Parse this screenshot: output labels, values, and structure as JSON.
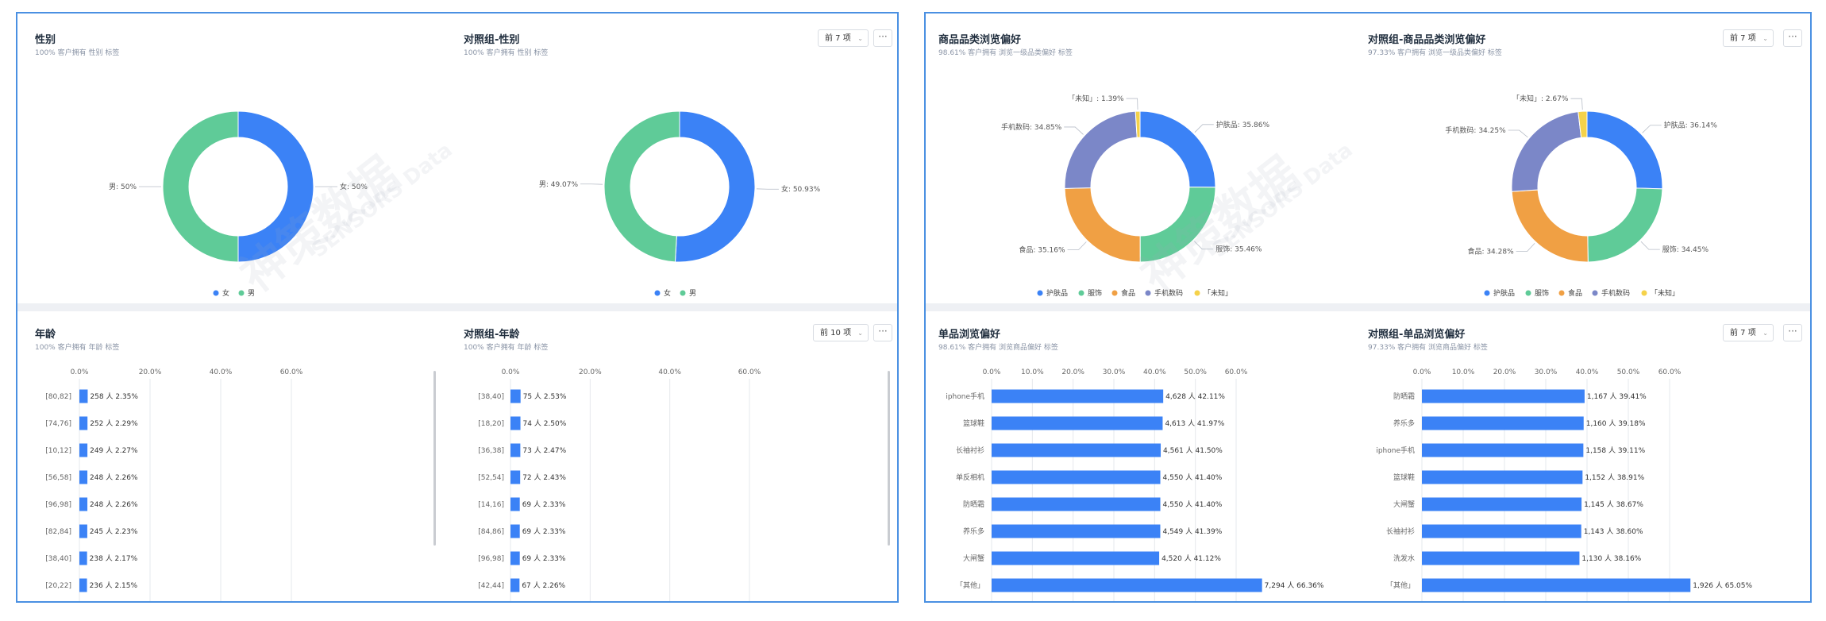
{
  "colors": {
    "blue": "#3b82f6",
    "green": "#5fcb98",
    "orange": "#f0a044",
    "purple": "#7b87c8",
    "yellow": "#f5d24a",
    "accent": "#4a90e2"
  },
  "watermark": {
    "main": "神策数据",
    "sub": "SENSORS Data"
  },
  "left": {
    "gender": {
      "title": "性别",
      "subtitle": "100% 客户拥有 性别 标签",
      "chart_data": {
        "type": "pie",
        "title": "性别",
        "slices": [
          {
            "name": "女",
            "value": 50,
            "label": "女: 50%",
            "color": "#3b82f6"
          },
          {
            "name": "男",
            "value": 50,
            "label": "男: 50%",
            "color": "#5fcb98"
          }
        ],
        "legend": [
          "女",
          "男"
        ],
        "legend_position": "bottom"
      }
    },
    "ctrl_gender": {
      "title": "对照组-性别",
      "subtitle": "100% 客户拥有 性别 标签",
      "select": "前 7 项",
      "more": "···",
      "chart_data": {
        "type": "pie",
        "title": "对照组-性别",
        "slices": [
          {
            "name": "女",
            "value": 50.93,
            "label": "女: 50.93%",
            "color": "#3b82f6"
          },
          {
            "name": "男",
            "value": 49.07,
            "label": "男: 49.07%",
            "color": "#5fcb98"
          }
        ],
        "legend": [
          "女",
          "男"
        ],
        "legend_position": "bottom"
      }
    },
    "age": {
      "title": "年龄",
      "subtitle": "100% 客户拥有 年龄 标签",
      "chart_data": {
        "type": "bar",
        "orientation": "horizontal",
        "title": "年龄",
        "xlim": [
          0,
          60
        ],
        "ticks": [
          "0.0%",
          "20.0%",
          "40.0%",
          "60.0%"
        ],
        "categories": [
          "[80,82]",
          "[74,76]",
          "[10,12]",
          "[56,58]",
          "[96,98]",
          "[82,84]",
          "[38,40]",
          "[20,22]"
        ],
        "values": [
          2.35,
          2.29,
          2.27,
          2.26,
          2.26,
          2.23,
          2.17,
          2.15
        ],
        "labels": [
          "258 人 2.35%",
          "252 人 2.29%",
          "249 人 2.27%",
          "248 人 2.26%",
          "248 人 2.26%",
          "245 人 2.23%",
          "238 人 2.17%",
          "236 人 2.15%"
        ]
      }
    },
    "ctrl_age": {
      "title": "对照组-年龄",
      "subtitle": "100% 客户拥有 年龄 标签",
      "select": "前 10 项",
      "more": "···",
      "chart_data": {
        "type": "bar",
        "orientation": "horizontal",
        "title": "对照组-年龄",
        "xlim": [
          0,
          60
        ],
        "ticks": [
          "0.0%",
          "20.0%",
          "40.0%",
          "60.0%"
        ],
        "categories": [
          "[38,40]",
          "[18,20]",
          "[36,38]",
          "[52,54]",
          "[14,16]",
          "[84,86]",
          "[96,98]",
          "[42,44]"
        ],
        "values": [
          2.53,
          2.5,
          2.47,
          2.43,
          2.33,
          2.33,
          2.33,
          2.26
        ],
        "labels": [
          "75 人 2.53%",
          "74 人 2.50%",
          "73 人 2.47%",
          "72 人 2.43%",
          "69 人 2.33%",
          "69 人 2.33%",
          "69 人 2.33%",
          "67 人 2.26%"
        ]
      }
    }
  },
  "right": {
    "category": {
      "title": "商品品类浏览偏好",
      "subtitle": "98.61% 客户拥有 浏览一级品类偏好 标签",
      "chart_data": {
        "type": "pie",
        "title": "商品品类浏览偏好",
        "slices": [
          {
            "name": "护肤品",
            "value": 35.86,
            "label": "护肤品: 35.86%",
            "color": "#3b82f6"
          },
          {
            "name": "服饰",
            "value": 35.46,
            "label": "服饰: 35.46%",
            "color": "#5fcb98"
          },
          {
            "name": "食品",
            "value": 35.16,
            "label": "食品: 35.16%",
            "color": "#f0a044"
          },
          {
            "name": "手机数码",
            "value": 34.85,
            "label": "手机数码: 34.85%",
            "color": "#7b87c8"
          },
          {
            "name": "「未知」",
            "value": 1.39,
            "label": "「未知」: 1.39%",
            "color": "#f5d24a"
          }
        ],
        "legend": [
          "护肤品",
          "服饰",
          "食品",
          "手机数码",
          "「未知」"
        ],
        "legend_position": "bottom"
      }
    },
    "ctrl_category": {
      "title": "对照组-商品品类浏览偏好",
      "subtitle": "97.33% 客户拥有 浏览一级品类偏好 标签",
      "select": "前 7 项",
      "more": "···",
      "chart_data": {
        "type": "pie",
        "title": "对照组-商品品类浏览偏好",
        "slices": [
          {
            "name": "护肤品",
            "value": 36.14,
            "label": "护肤品: 36.14%",
            "color": "#3b82f6"
          },
          {
            "name": "服饰",
            "value": 34.45,
            "label": "服饰: 34.45%",
            "color": "#5fcb98"
          },
          {
            "name": "食品",
            "value": 34.28,
            "label": "食品: 34.28%",
            "color": "#f0a044"
          },
          {
            "name": "手机数码",
            "value": 34.25,
            "label": "手机数码: 34.25%",
            "color": "#7b87c8"
          },
          {
            "name": "「未知」",
            "value": 2.67,
            "label": "「未知」: 2.67%",
            "color": "#f5d24a"
          }
        ],
        "legend": [
          "护肤品",
          "服饰",
          "食品",
          "手机数码",
          "「未知」"
        ],
        "legend_position": "bottom"
      }
    },
    "product": {
      "title": "单品浏览偏好",
      "subtitle": "98.61% 客户拥有 浏览商品偏好 标签",
      "chart_data": {
        "type": "bar",
        "orientation": "horizontal",
        "title": "单品浏览偏好",
        "xlim": [
          0,
          60
        ],
        "ticks": [
          "0.0%",
          "10.0%",
          "20.0%",
          "30.0%",
          "40.0%",
          "50.0%",
          "60.0%"
        ],
        "categories": [
          "iphone手机",
          "篮球鞋",
          "长袖衬衫",
          "单反相机",
          "防晒霜",
          "养乐多",
          "大闸蟹",
          "「其他」"
        ],
        "values": [
          42.11,
          41.97,
          41.5,
          41.4,
          41.4,
          41.39,
          41.12,
          66.36
        ],
        "labels": [
          "4,628 人 42.11%",
          "4,613 人 41.97%",
          "4,561 人 41.50%",
          "4,550 人 41.40%",
          "4,550 人 41.40%",
          "4,549 人 41.39%",
          "4,520 人 41.12%",
          "7,294 人 66.36%"
        ]
      }
    },
    "ctrl_product": {
      "title": "对照组-单品浏览偏好",
      "subtitle": "97.33% 客户拥有 浏览商品偏好 标签",
      "select": "前 7 项",
      "more": "···",
      "chart_data": {
        "type": "bar",
        "orientation": "horizontal",
        "title": "对照组-单品浏览偏好",
        "xlim": [
          0,
          60
        ],
        "ticks": [
          "0.0%",
          "10.0%",
          "20.0%",
          "30.0%",
          "40.0%",
          "50.0%",
          "60.0%"
        ],
        "categories": [
          "防晒霜",
          "养乐多",
          "iphone手机",
          "篮球鞋",
          "大闸蟹",
          "长袖衬衫",
          "洗发水",
          "「其他」"
        ],
        "values": [
          39.41,
          39.18,
          39.11,
          38.91,
          38.67,
          38.6,
          38.16,
          65.05
        ],
        "labels": [
          "1,167 人 39.41%",
          "1,160 人 39.18%",
          "1,158 人 39.11%",
          "1,152 人 38.91%",
          "1,145 人 38.67%",
          "1,143 人 38.60%",
          "1,130 人 38.16%",
          "1,926 人 65.05%"
        ]
      }
    }
  }
}
